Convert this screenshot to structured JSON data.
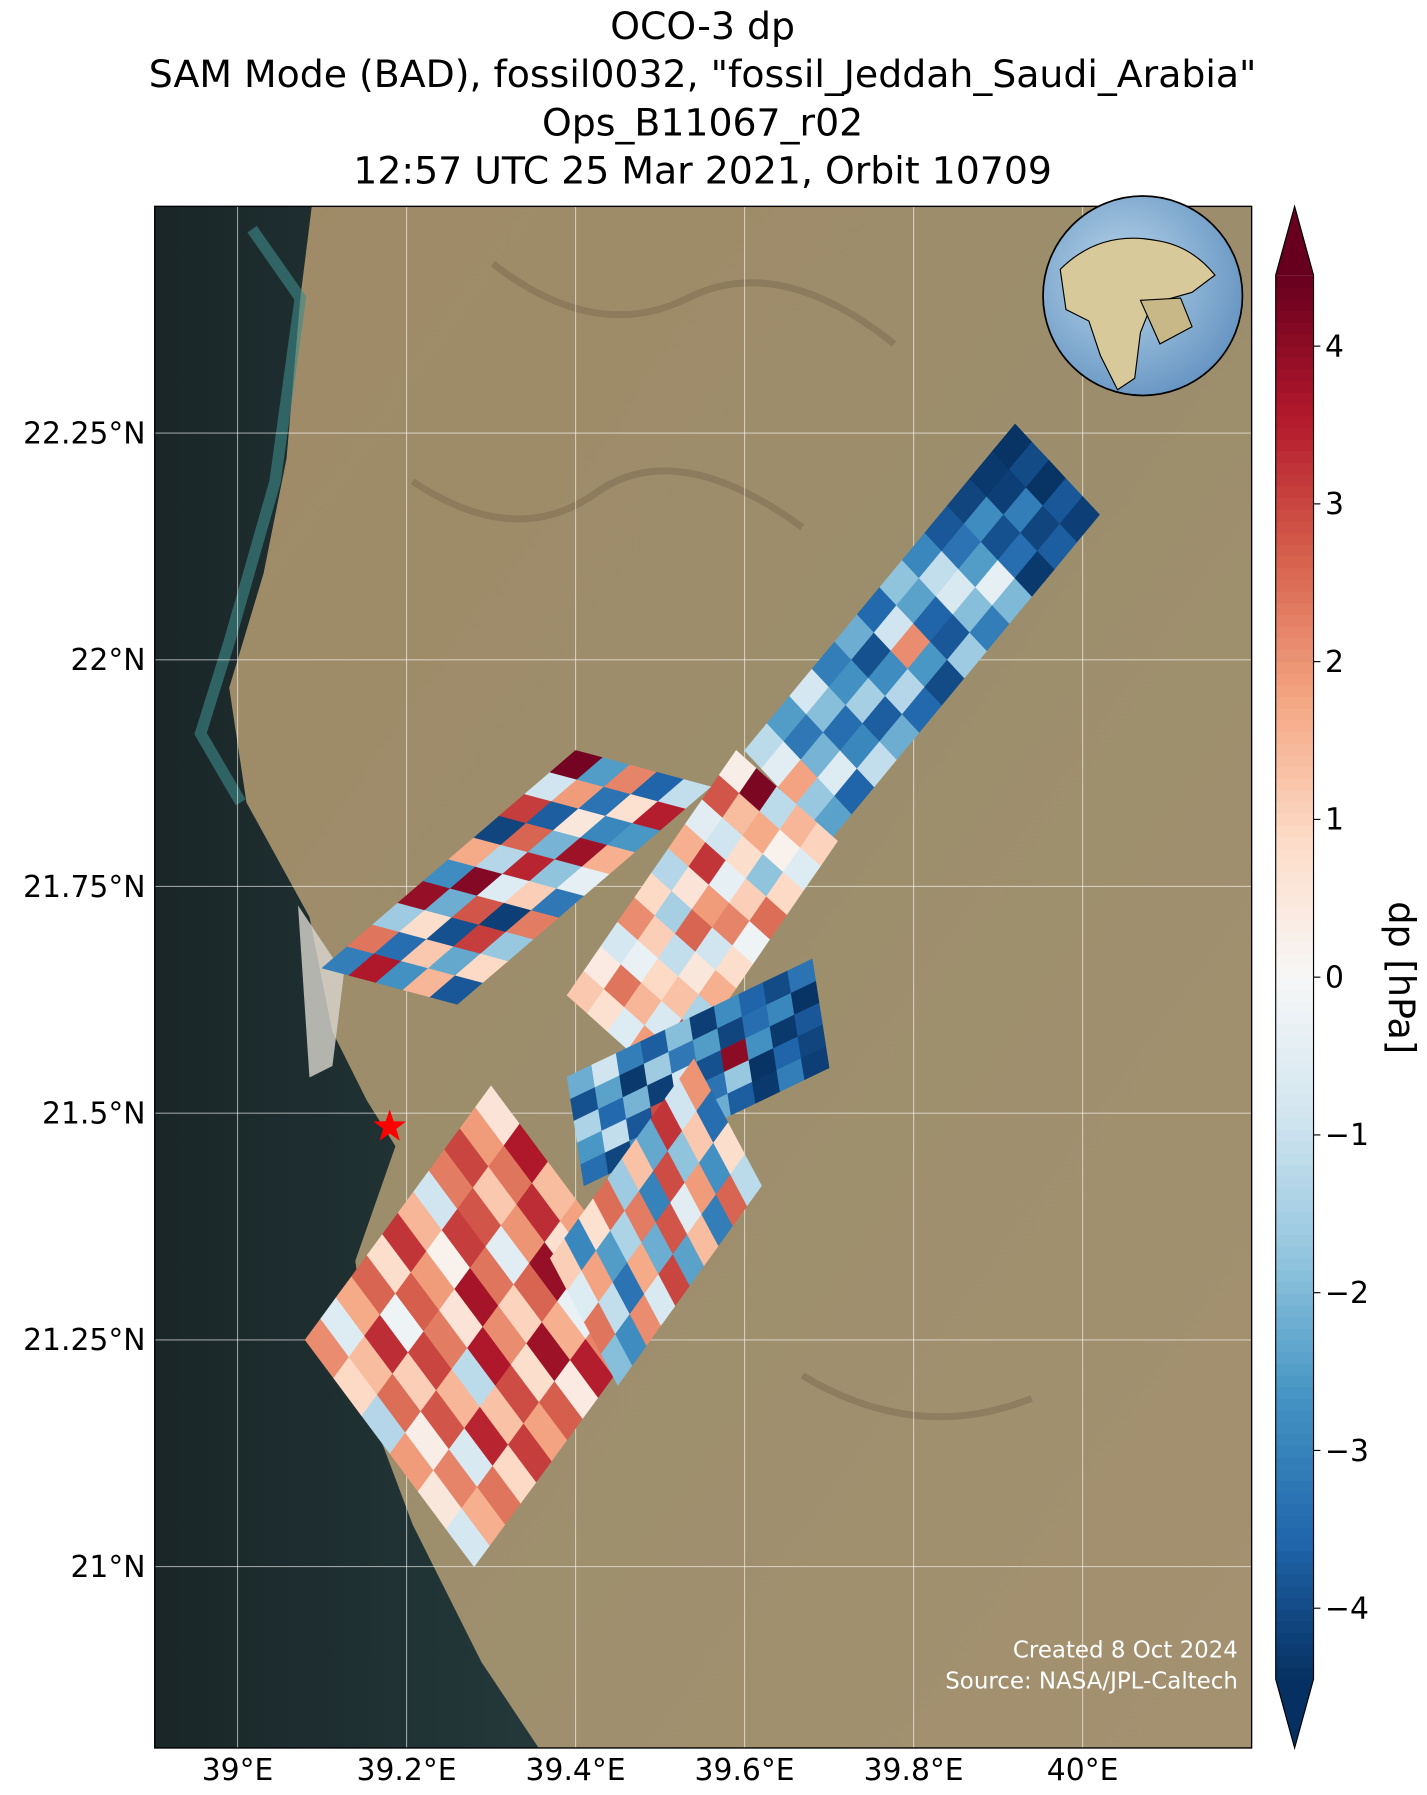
{
  "chart_data": {
    "type": "swath-map",
    "title": [
      "OCO-3 dp",
      "SAM Mode (BAD), fossil0032, \"fossil_Jeddah_Saudi_Arabia\"",
      "Ops_B11067_r02",
      "12:57 UTC 25 Mar 2021, Orbit 10709"
    ],
    "xlim": [
      38.902,
      40.2
    ],
    "ylim": [
      20.8,
      22.5
    ],
    "xticks": [
      {
        "value": 39,
        "label": "39°E"
      },
      {
        "value": 39.2,
        "label": "39.2°E"
      },
      {
        "value": 39.4,
        "label": "39.4°E"
      },
      {
        "value": 39.6,
        "label": "39.6°E"
      },
      {
        "value": 39.8,
        "label": "39.8°E"
      },
      {
        "value": 40,
        "label": "40°E"
      }
    ],
    "yticks": [
      {
        "value": 21,
        "label": "21°N"
      },
      {
        "value": 21.25,
        "label": "21.25°N"
      },
      {
        "value": 21.5,
        "label": "21.5°N"
      },
      {
        "value": 21.75,
        "label": "21.75°N"
      },
      {
        "value": 22,
        "label": "22°N"
      },
      {
        "value": 22.25,
        "label": "22.25°N"
      }
    ],
    "grid": true,
    "site": {
      "lon": 39.18,
      "lat": 21.485,
      "color": "#ff0000"
    },
    "colormap": "RdBu_r",
    "clim": [
      -4.45,
      4.45
    ],
    "colorbar_label": "dp [hPa]",
    "colorbar_ticks": [
      {
        "value": -4,
        "label": "−4"
      },
      {
        "value": -3,
        "label": "−3"
      },
      {
        "value": -2,
        "label": "−2"
      },
      {
        "value": -1,
        "label": "−1"
      },
      0,
      1,
      2,
      3,
      4
    ],
    "credits": [
      "Created 8 Oct 2024",
      "Source: NASA/JPL-Caltech"
    ],
    "strips": [
      {
        "start": [
          39.6,
          21.9
        ],
        "end": [
          39.92,
          22.26
        ],
        "across": [
          0.1,
          -0.1
        ],
        "values": [
          [
            -1.2,
            -2.5,
            -0.8,
            -3.1,
            -2.2,
            -3.5,
            -1.8,
            -2.9,
            -3.8,
            -4.1,
            -4.3,
            -4.4
          ],
          [
            -0.5,
            -3.2,
            -1.9,
            -2.7,
            -3.9,
            -0.9,
            -2.4,
            -1.1,
            -3.3,
            -2.8,
            -4.2,
            -4.0
          ],
          [
            1.8,
            -2.1,
            -3.4,
            -1.5,
            -2.8,
            2.1,
            -3.6,
            -0.7,
            -2.5,
            -3.9,
            -3.1,
            -4.4
          ],
          [
            -1.7,
            -0.6,
            -2.9,
            -3.7,
            -1.3,
            -2.6,
            -3.8,
            -1.9,
            -0.4,
            -3.4,
            -4.1,
            -3.8
          ],
          [
            -2.4,
            -3.6,
            -1.1,
            -2.2,
            -3.5,
            -4.0,
            -1.6,
            -3.1,
            -2.0,
            -4.3,
            -3.7,
            -4.2
          ]
        ]
      },
      {
        "start": [
          39.39,
          21.63
        ],
        "end": [
          39.59,
          21.9
        ],
        "across": [
          0.12,
          -0.1
        ],
        "values": [
          [
            1.2,
            0.4,
            -0.8,
            2.1,
            0.9,
            -1.3,
            1.6,
            -0.5,
            2.8,
            0.3
          ],
          [
            0.7,
            2.4,
            -0.3,
            1.1,
            -1.5,
            0.6,
            3.2,
            -0.9,
            1.4,
            4.2
          ],
          [
            -0.6,
            1.5,
            0.9,
            -1.1,
            2.6,
            1.9,
            -0.4,
            0.8,
            1.7,
            -1.2
          ],
          [
            1.9,
            -0.7,
            1.3,
            0.5,
            -0.9,
            2.2,
            1.1,
            -1.8,
            0.2,
            1.5
          ],
          [
            0.3,
            2.9,
            -1.4,
            1.6,
            0.8,
            -0.2,
            2.5,
            0.9,
            -0.6,
            1.0
          ]
        ]
      },
      {
        "start": [
          39.1,
          21.66
        ],
        "end": [
          39.4,
          21.9
        ],
        "across": [
          0.16,
          -0.04
        ],
        "values": [
          [
            -3.1,
            2.4,
            -1.6,
            3.9,
            -2.8,
            1.7,
            -4.1,
            3.1,
            -0.9,
            4.3
          ],
          [
            3.6,
            -3.4,
            0.8,
            -2.2,
            4.1,
            -1.3,
            2.6,
            -3.7,
            1.9,
            -2.5
          ],
          [
            -2.7,
            1.2,
            -3.9,
            2.8,
            -0.6,
            3.4,
            -2.1,
            0.5,
            -3.3,
            2.2
          ],
          [
            1.5,
            -2.3,
            3.1,
            -4.2,
            1.1,
            -1.8,
            3.8,
            -2.9,
            0.7,
            -3.6
          ],
          [
            -3.8,
            0.9,
            -1.7,
            2.3,
            -3.2,
            -0.4,
            1.6,
            -2.6,
            3.5,
            -1.1
          ]
        ]
      },
      {
        "start": [
          39.41,
          21.42
        ],
        "end": [
          39.7,
          21.55
        ],
        "across": [
          -0.02,
          0.12
        ],
        "values": [
          [
            -3.4,
            -4.1,
            -2.8,
            -3.9,
            -4.4,
            -2.2,
            -3.7,
            -4.3,
            -3.1,
            -4.2
          ],
          [
            -2.6,
            -1.1,
            -3.8,
            2.9,
            -4.0,
            -3.3,
            -1.7,
            -4.4,
            -3.6,
            -4.1
          ],
          [
            -1.4,
            -3.5,
            -2.1,
            -4.2,
            -0.8,
            -3.9,
            4.0,
            -2.7,
            -4.3,
            -3.8
          ],
          [
            -3.9,
            -2.4,
            -4.3,
            -1.6,
            -3.2,
            -2.5,
            -4.1,
            -3.4,
            -2.9,
            -4.4
          ],
          [
            -2.2,
            -0.9,
            -3.1,
            -3.7,
            -1.9,
            -4.2,
            -2.8,
            -3.6,
            -4.0,
            -3.3
          ]
        ]
      },
      {
        "start": [
          39.28,
          21.0
        ],
        "end": [
          39.5,
          21.28
        ],
        "across": [
          -0.2,
          0.25
        ],
        "values": [
          [
            -0.8,
            1.6,
            2.4,
            0.9,
            3.1,
            1.8,
            2.7,
            0.4,
            3.5,
            2.2,
            1.1,
            2.9
          ],
          [
            0.5,
            2.2,
            -0.7,
            3.4,
            1.3,
            2.9,
            0.8,
            3.8,
            1.6,
            -0.3,
            3.2,
            2.5
          ],
          [
            1.9,
            0.3,
            2.8,
            1.5,
            -1.2,
            3.6,
            2.1,
            1.0,
            2.6,
            3.9,
            0.7,
            1.8
          ],
          [
            -1.3,
            2.5,
            1.1,
            3.0,
            2.3,
            0.6,
            3.7,
            2.4,
            -0.5,
            2.0,
            3.3,
            1.4
          ],
          [
            0.9,
            1.4,
            3.3,
            -0.2,
            2.7,
            1.9,
            0.2,
            3.1,
            2.8,
            1.2,
            2.4,
            3.6
          ],
          [
            2.1,
            -0.6,
            1.7,
            2.6,
            0.8,
            3.2,
            1.5,
            -0.9,
            2.3,
            3.0,
            1.9,
            0.6
          ]
        ]
      },
      {
        "start": [
          39.45,
          21.2
        ],
        "end": [
          39.62,
          21.42
        ],
        "across": [
          -0.08,
          0.14
        ],
        "values": [
          [
            -1.9,
            -2.8,
            2.1,
            -0.7,
            3.0,
            -2.4,
            1.4,
            -3.1,
            2.6,
            -1.2
          ],
          [
            2.4,
            -1.1,
            -3.3,
            1.7,
            -2.2,
            2.8,
            -0.5,
            1.9,
            -2.7,
            0.8
          ],
          [
            -0.6,
            1.8,
            -2.5,
            -1.4,
            2.3,
            -3.0,
            2.9,
            -1.8,
            1.2,
            -3.4
          ],
          [
            1.1,
            -2.9,
            0.7,
            2.5,
            -1.6,
            1.3,
            -2.3,
            3.2,
            -0.9,
            2.0
          ]
        ]
      }
    ]
  }
}
